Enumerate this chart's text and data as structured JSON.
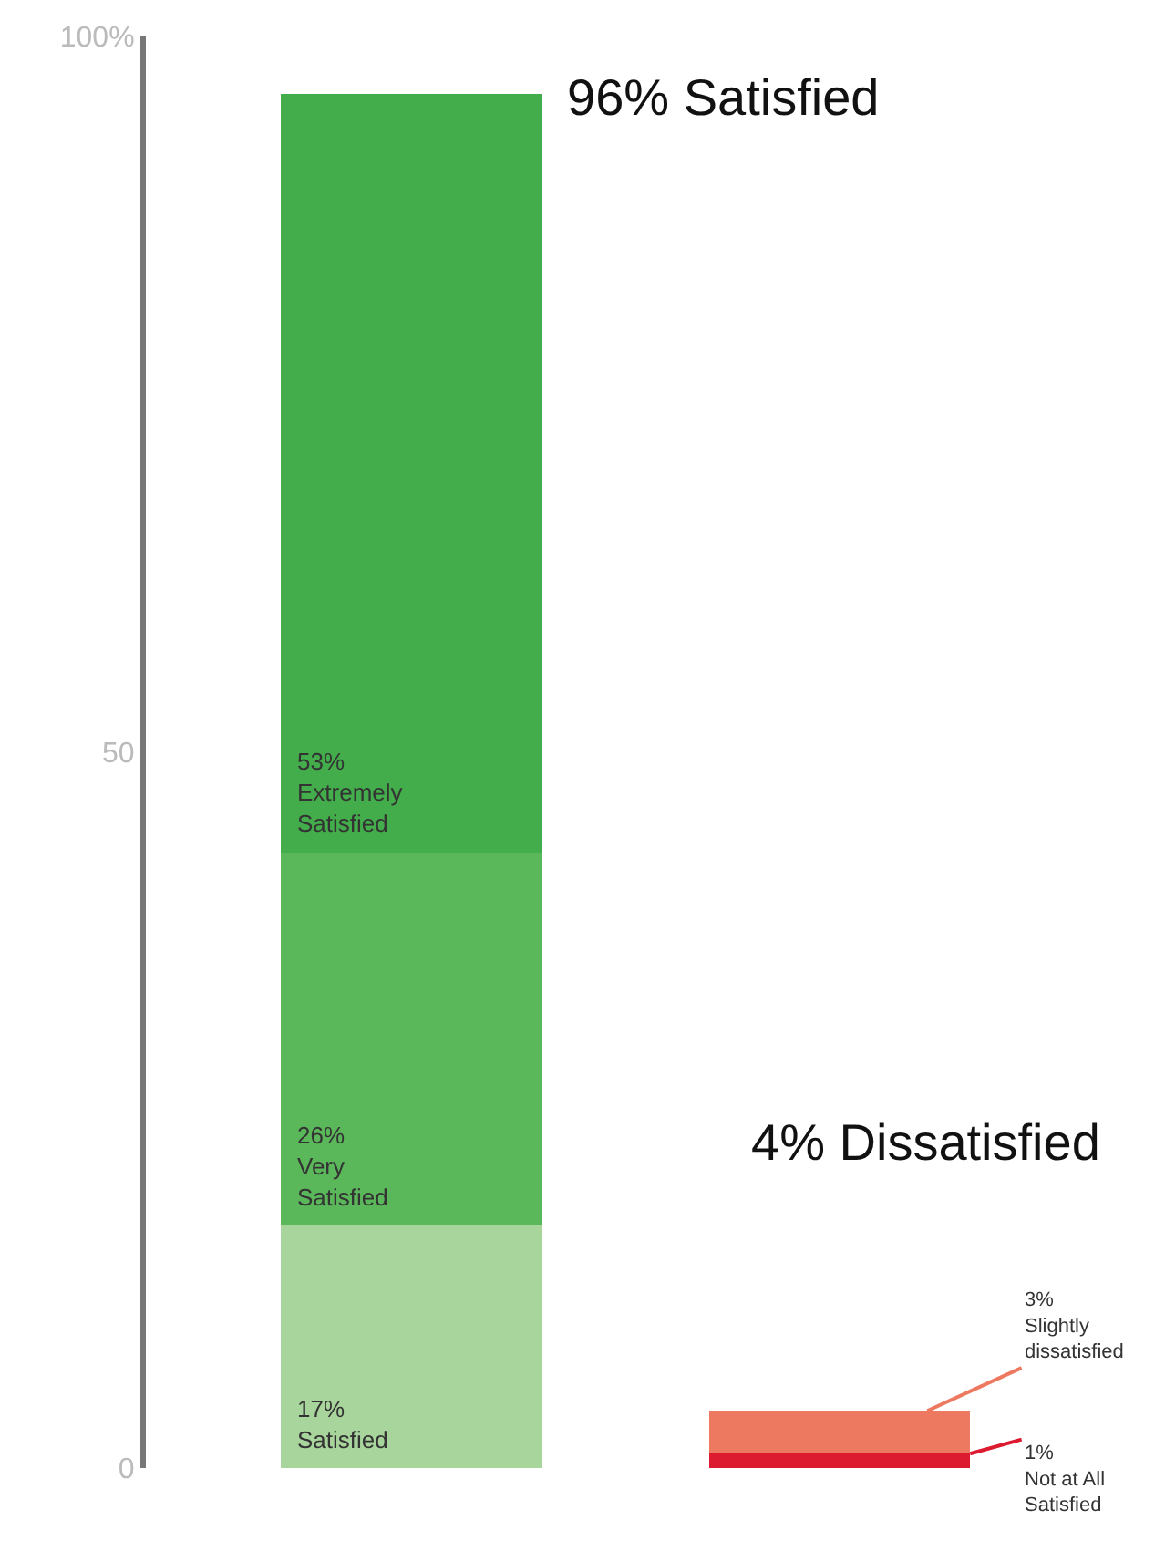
{
  "chart_data": {
    "type": "bar",
    "stacked": true,
    "categories": [
      null,
      null
    ],
    "series": [
      {
        "colors": [
          "#a8d59b",
          "#dc1a30"
        ],
        "values": [
          17,
          1
        ],
        "value_labels": [
          "17%\nSatisfied",
          "1%\nNot at All\nSatisfied"
        ]
      },
      {
        "colors": [
          "#5bb85a",
          "#ee7961"
        ],
        "values": [
          26,
          3
        ],
        "value_labels": [
          "26%\nVery\nSatisfied",
          "3%\nSlightly\ndissatisfied"
        ]
      },
      {
        "colors": [
          "#43ad4b",
          "#43ad4b"
        ],
        "values": [
          53,
          null
        ],
        "value_labels": [
          "53%\nExtremely\nSatisfied",
          null
        ]
      }
    ],
    "ylim": [
      0,
      100
    ],
    "yticks": [
      0,
      50,
      {
        "value": 100,
        "label": "100%"
      }
    ],
    "annotations": [
      "96% Satisfied",
      "4% Dissatisfied"
    ],
    "legend": false
  }
}
